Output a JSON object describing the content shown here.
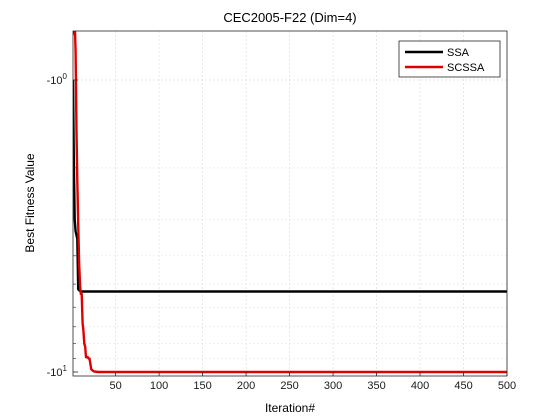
{
  "chart_data": {
    "type": "line",
    "title": "CEC2005-F22 (Dim=4)",
    "xlabel": "Iteration#",
    "ylabel": "Best Fitness Value",
    "xlim": [
      1,
      500
    ],
    "x_ticks": [
      50,
      100,
      150,
      200,
      250,
      300,
      350,
      400,
      450,
      500
    ],
    "y_scale": "log (negative values, -10^0 to -10^1 with -10^1 at bottom)",
    "y_ticks": [
      {
        "value": -1,
        "label_base": "-10",
        "label_exp": "0"
      },
      {
        "value": -10,
        "label_base": "-10",
        "label_exp": "1"
      }
    ],
    "grid": true,
    "legend_position": "top-right",
    "series": [
      {
        "name": "SSA",
        "color": "#000000",
        "x": [
          1,
          2,
          3,
          4,
          5,
          6,
          7,
          8,
          10,
          500
        ],
        "y": [
          -1.0,
          -2.0,
          -3.0,
          -3.3,
          -3.4,
          -3.5,
          -5.2,
          -5.25,
          -5.3,
          -5.3
        ]
      },
      {
        "name": "SCSSA",
        "color": "#e00000",
        "x": [
          1,
          2,
          3,
          4,
          5,
          6,
          7,
          8,
          9,
          10,
          11,
          12,
          13,
          14,
          15,
          16,
          17,
          18,
          19,
          20,
          22,
          25,
          30,
          500
        ],
        "y": [
          -0.7,
          -0.62,
          -0.62,
          -0.8,
          -1.5,
          -2.2,
          -3.1,
          -4.2,
          -5.0,
          -5.4,
          -5.4,
          -6.8,
          -7.2,
          -8.0,
          -8.2,
          -8.9,
          -8.9,
          -8.9,
          -9.0,
          -9.0,
          -9.8,
          -9.95,
          -10.0,
          -10.0
        ]
      }
    ]
  }
}
